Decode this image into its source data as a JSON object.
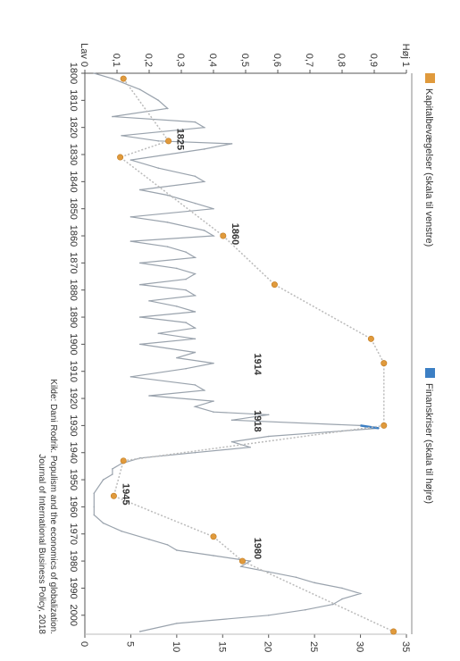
{
  "chart_data": {
    "type": "line",
    "orientation": "rotated-90-clockwise",
    "x_axis": {
      "tick_labels": [
        "1800",
        "1810",
        "1820",
        "1830",
        "1840",
        "1850",
        "1860",
        "1870",
        "1880",
        "1890",
        "1900",
        "1910",
        "1920",
        "1930",
        "1940",
        "1950",
        "1960",
        "1970",
        "1980",
        "1990",
        "2000"
      ],
      "range": [
        1800,
        2007
      ]
    },
    "left_axis": {
      "range": [
        0,
        1
      ],
      "tick_labels": [
        "Lav 0",
        "0,1",
        "0,2",
        "0,3",
        "0,4",
        "0,5",
        "0,6",
        "0,7",
        "0,8",
        "0,9",
        "Høj 1"
      ]
    },
    "right_axis": {
      "range": [
        0,
        35
      ],
      "tick_labels": [
        "0",
        "5",
        "10",
        "15",
        "20",
        "25",
        "30",
        "35"
      ]
    },
    "series": [
      {
        "name": "Kapitalbevægelser (skala til venstre)",
        "color": "#e09a3c",
        "line_color": "#bbbbbb",
        "axis": "left",
        "x": [
          1802,
          1825,
          1831,
          1860,
          1878,
          1898,
          1907,
          1930,
          1943,
          1956,
          1971,
          1980,
          2006
        ],
        "y": [
          0.12,
          0.26,
          0.11,
          0.43,
          0.59,
          0.89,
          0.93,
          0.93,
          0.12,
          0.09,
          0.4,
          0.49,
          0.96
        ]
      },
      {
        "name": "Finanskriser (skala til højre)",
        "color": "#3c7fc4",
        "axis": "right",
        "x": [
          1800,
          1802,
          1806,
          1810,
          1813,
          1816,
          1818,
          1820,
          1823,
          1825,
          1826,
          1828,
          1832,
          1835,
          1838,
          1840,
          1843,
          1845,
          1848,
          1850,
          1853,
          1855,
          1858,
          1860,
          1862,
          1864,
          1866,
          1868,
          1870,
          1872,
          1874,
          1876,
          1878,
          1880,
          1882,
          1884,
          1886,
          1888,
          1890,
          1892,
          1894,
          1896,
          1898,
          1900,
          1903,
          1905,
          1907,
          1909,
          1912,
          1915,
          1917,
          1919,
          1921,
          1923,
          1925,
          1926,
          1928,
          1930,
          1931,
          1932,
          1934,
          1936,
          1938,
          1940,
          1942,
          1944,
          1946,
          1948,
          1950,
          1955,
          1960,
          1963,
          1966,
          1969,
          1972,
          1974,
          1976,
          1978,
          1980,
          1982,
          1984,
          1986,
          1988,
          1990,
          1992,
          1994,
          1996,
          1998,
          2000,
          2003,
          2006
        ],
        "y": [
          1,
          3,
          6,
          8,
          9,
          3,
          12,
          13,
          4,
          8,
          16,
          13,
          5,
          8,
          12,
          13,
          6,
          9,
          12,
          14,
          5,
          9,
          13,
          14,
          5,
          9,
          11,
          12,
          6,
          10,
          12,
          11,
          6,
          11,
          12,
          7,
          10,
          12,
          6,
          11,
          12,
          8,
          12,
          6,
          12,
          10,
          14,
          11,
          5,
          12,
          13,
          7,
          14,
          12,
          14,
          20,
          16,
          30,
          32,
          28,
          20,
          16,
          18,
          12,
          6,
          4,
          3,
          3,
          2,
          1,
          1,
          1,
          2,
          4,
          7,
          9,
          10,
          14,
          18,
          17,
          20,
          23,
          25,
          28,
          30,
          28,
          27,
          24,
          20,
          10,
          6
        ]
      }
    ],
    "annotations": [
      {
        "label": "1825",
        "x": 1825
      },
      {
        "label": "1860",
        "x": 1860
      },
      {
        "label": "1914",
        "x": 1908
      },
      {
        "label": "1918",
        "x": 1929
      },
      {
        "label": "1945",
        "x": 1956
      },
      {
        "label": "1980",
        "x": 1976
      }
    ],
    "source": [
      "Kilde: Dani Rodrik. Populism and the economics of globalization.",
      "Journal of International Business Policy, 2018"
    ],
    "grid": false,
    "legend_placement": "top"
  }
}
